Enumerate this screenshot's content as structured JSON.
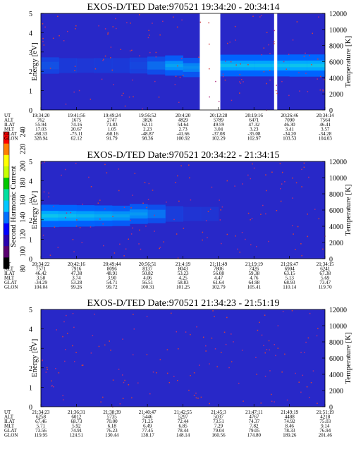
{
  "figure": {
    "colorbar": {
      "label": "Second Harmonic Current",
      "ticks": [
        "80",
        "100",
        "120",
        "140",
        "160",
        "180",
        "200",
        "220",
        "240"
      ],
      "colors": [
        "#000000",
        "#5a0070",
        "#2a00b0",
        "#0000ff",
        "#0070ff",
        "#00c8ff",
        "#00e0a0",
        "#00c800",
        "#c8ff00",
        "#ffff00",
        "#ff8000",
        "#ff0000"
      ]
    }
  },
  "chart_data": [
    {
      "type": "heatmap",
      "title": "EXOS-D/TED   Date:970521   19:34:20 - 20:34:14",
      "ylabel": "Energy [eV]",
      "y2label": "Temperature [K]",
      "ylim": [
        0,
        5
      ],
      "y2lim": [
        0,
        12000
      ],
      "yticks": [
        "0",
        "1",
        "2",
        "3",
        "4",
        "5"
      ],
      "y2ticks": [
        "0",
        "2000",
        "4000",
        "6000",
        "8000",
        "10000",
        "12000"
      ],
      "x_ticks": [
        "19:34:20",
        "19:41:56",
        "19:49:24",
        "19:56:52",
        "20:4:20",
        "20:12:28",
        "20:19:16",
        "20:26:46",
        "20:34:14"
      ],
      "band_intensity": [
        0.3,
        0.15,
        0.1,
        0.15,
        0.15,
        0.25,
        0.45,
        0.7,
        0.6,
        0.0,
        0.85,
        0.85,
        0.85,
        0.85,
        0.9,
        0.9
      ],
      "band_center_ev": [
        2.3,
        2.3,
        2.3,
        2.3,
        2.3,
        2.3,
        2.3,
        2.3,
        2.2,
        2.3,
        2.3,
        2.3,
        2.3,
        2.3,
        2.3,
        2.3
      ],
      "data_gap_ut": [
        [
          "20:7:50",
          "20:12:10"
        ],
        [
          "20:23:30",
          "20:24:10"
        ]
      ],
      "ephemeris": [
        {
          "label": "UT",
          "values": [
            "19:34:20",
            "19:41:56",
            "19:49:24",
            "19:56:52",
            "20:4:20",
            "20:12:28",
            "20:19:16",
            "20:26:46",
            "20:34:14"
          ]
        },
        {
          "label": "ALT",
          "values": [
            "762",
            "1675",
            "2747",
            "3826",
            "4829",
            "5789",
            "6471",
            "7090",
            "7564"
          ]
        },
        {
          "label": "ILAT",
          "values": [
            "55.94",
            "74.16",
            "71.83",
            "62.11",
            "54.64",
            "49.59",
            "47.32",
            "46.30",
            "46.41"
          ]
        },
        {
          "label": "MLT",
          "values": [
            "17.03",
            "20.67",
            "1.05",
            "2.23",
            "2.73",
            "3.04",
            "3.23",
            "3.41",
            "3.57"
          ]
        },
        {
          "label": "GLAT",
          "values": [
            "-68.33",
            "-75.11",
            "-60.16",
            "-48.87",
            "-41.66",
            "-37.08",
            "-35.08",
            "-34.20",
            "-34.28"
          ]
        },
        {
          "label": "GLON",
          "values": [
            "328.94",
            "62.12",
            "91.79",
            "98.36",
            "100.92",
            "102.29",
            "102.97",
            "103.53",
            "104.03"
          ]
        }
      ]
    },
    {
      "type": "heatmap",
      "title": "EXOS-D/TED   Date:970521   20:34:22 - 21:34:15",
      "ylabel": "Energy [eV]",
      "y2label": "Temperature [K]",
      "ylim": [
        0,
        5
      ],
      "y2lim": [
        0,
        12000
      ],
      "yticks": [
        "0",
        "1",
        "2",
        "3",
        "4",
        "5"
      ],
      "y2ticks": [
        "0",
        "2000",
        "4000",
        "6000",
        "8000",
        "10000",
        "12000"
      ],
      "x_ticks": [
        "20:34:22",
        "20:42:16",
        "20:49:44",
        "20:56:51",
        "21:4:19",
        "21:11:49",
        "21:19:19",
        "21:26:47",
        "21:34:15"
      ],
      "band_intensity": [
        0.9,
        0.85,
        0.8,
        0.75,
        0.7,
        0.65,
        0.5,
        0.2,
        0.05,
        0.05,
        0.0,
        0.0,
        0.0,
        0.0,
        0.0,
        0.0
      ],
      "band_center_ev": [
        2.2,
        2.2,
        2.2,
        2.2,
        2.2,
        2.3,
        2.3,
        2.3,
        2.3,
        2.3,
        2.3,
        2.3,
        2.3,
        2.3,
        2.3,
        2.3
      ],
      "data_gap_ut": [],
      "ephemeris": [
        {
          "label": "UT",
          "values": [
            "20:34:22",
            "20:42:16",
            "20:49:44",
            "20:56:51",
            "21:4:19",
            "21:11:49",
            "21:19:19",
            "21:26:47",
            "21:34:15"
          ]
        },
        {
          "label": "ALT",
          "values": [
            "7571",
            "7916",
            "8096",
            "8137",
            "8043",
            "7806",
            "7426",
            "6904",
            "6241"
          ]
        },
        {
          "label": "ILAT",
          "values": [
            "46.42",
            "47.38",
            "48.91",
            "50.82",
            "53.23",
            "56.08",
            "59.38",
            "63.15",
            "67.38"
          ]
        },
        {
          "label": "MLT",
          "values": [
            "3.58",
            "3.74",
            "3.90",
            "4.06",
            "4.25",
            "4.47",
            "4.76",
            "5.13",
            "5.69"
          ]
        },
        {
          "label": "GLAT",
          "values": [
            "-34.29",
            "53.28",
            "54.71",
            "56.51",
            "58.83",
            "61.64",
            "64.98",
            "68.93",
            "73.47"
          ]
        },
        {
          "label": "GLON",
          "values": [
            "104.04",
            "99.26",
            "99.72",
            "100.31",
            "101.25",
            "102.79",
            "105.41",
            "110.14",
            "119.70"
          ]
        }
      ]
    },
    {
      "type": "heatmap",
      "title": "EXOS-D/TED   Date:970521   21:34:23 - 21:51:19",
      "ylabel": "Energy [eV]",
      "y2label": "Temperature [K]",
      "ylim": [
        0,
        5
      ],
      "y2lim": [
        0,
        12000
      ],
      "yticks": [
        "0",
        "1",
        "2",
        "3",
        "4",
        "5"
      ],
      "y2ticks": [
        "0",
        "2000",
        "4000",
        "6000",
        "8000",
        "10000",
        "12000"
      ],
      "x_ticks": [
        "21:34:23",
        "21:36:31",
        "21:38:39",
        "21:40:47",
        "21:42:55",
        "21:45:3",
        "21:47:11",
        "21:49:19",
        "21:51:19"
      ],
      "band_intensity": [
        0.0,
        0.0,
        0.0,
        0.0,
        0.0,
        0.0,
        0.0,
        0.0,
        0.0,
        0.0,
        0.0,
        0.0,
        0.0,
        0.0,
        0.0,
        0.0
      ],
      "band_center_ev": [
        2.3,
        2.3,
        2.3,
        2.3,
        2.3,
        2.3,
        2.3,
        2.3,
        2.3,
        2.3,
        2.3,
        2.3,
        2.3,
        2.3,
        2.3,
        2.3
      ],
      "data_gap_ut": [],
      "ephemeris": [
        {
          "label": "UT",
          "values": [
            "21:34:23",
            "21:36:31",
            "21:38:39",
            "21:40:47",
            "21:42:55",
            "21:45:3",
            "21:47:11",
            "21:49:19",
            "21:51:19"
          ]
        },
        {
          "label": "ALT",
          "values": [
            "6258",
            "6012",
            "5735",
            "5446",
            "5297",
            "5037",
            "4767",
            "4488",
            "4218"
          ]
        },
        {
          "label": "ILAT",
          "values": [
            "67.46",
            "68.73",
            "70.00",
            "71.25",
            "72.44",
            "73.51",
            "74.37",
            "74.92",
            "75.03"
          ]
        },
        {
          "label": "MLT",
          "values": [
            "5.71",
            "5.92",
            "6.18",
            "6.49",
            "6.85",
            "7.29",
            "7.82",
            "8.46",
            "9.14"
          ]
        },
        {
          "label": "GLAT",
          "values": [
            "73.56",
            "74.91",
            "76.23",
            "77.45",
            "78.44",
            "79.04",
            "79.05",
            "78.33",
            "76.94"
          ]
        },
        {
          "label": "GLON",
          "values": [
            "119.95",
            "124.51",
            "130.44",
            "138.17",
            "148.14",
            "160.56",
            "174.80",
            "189.26",
            "201.46"
          ]
        }
      ]
    }
  ]
}
